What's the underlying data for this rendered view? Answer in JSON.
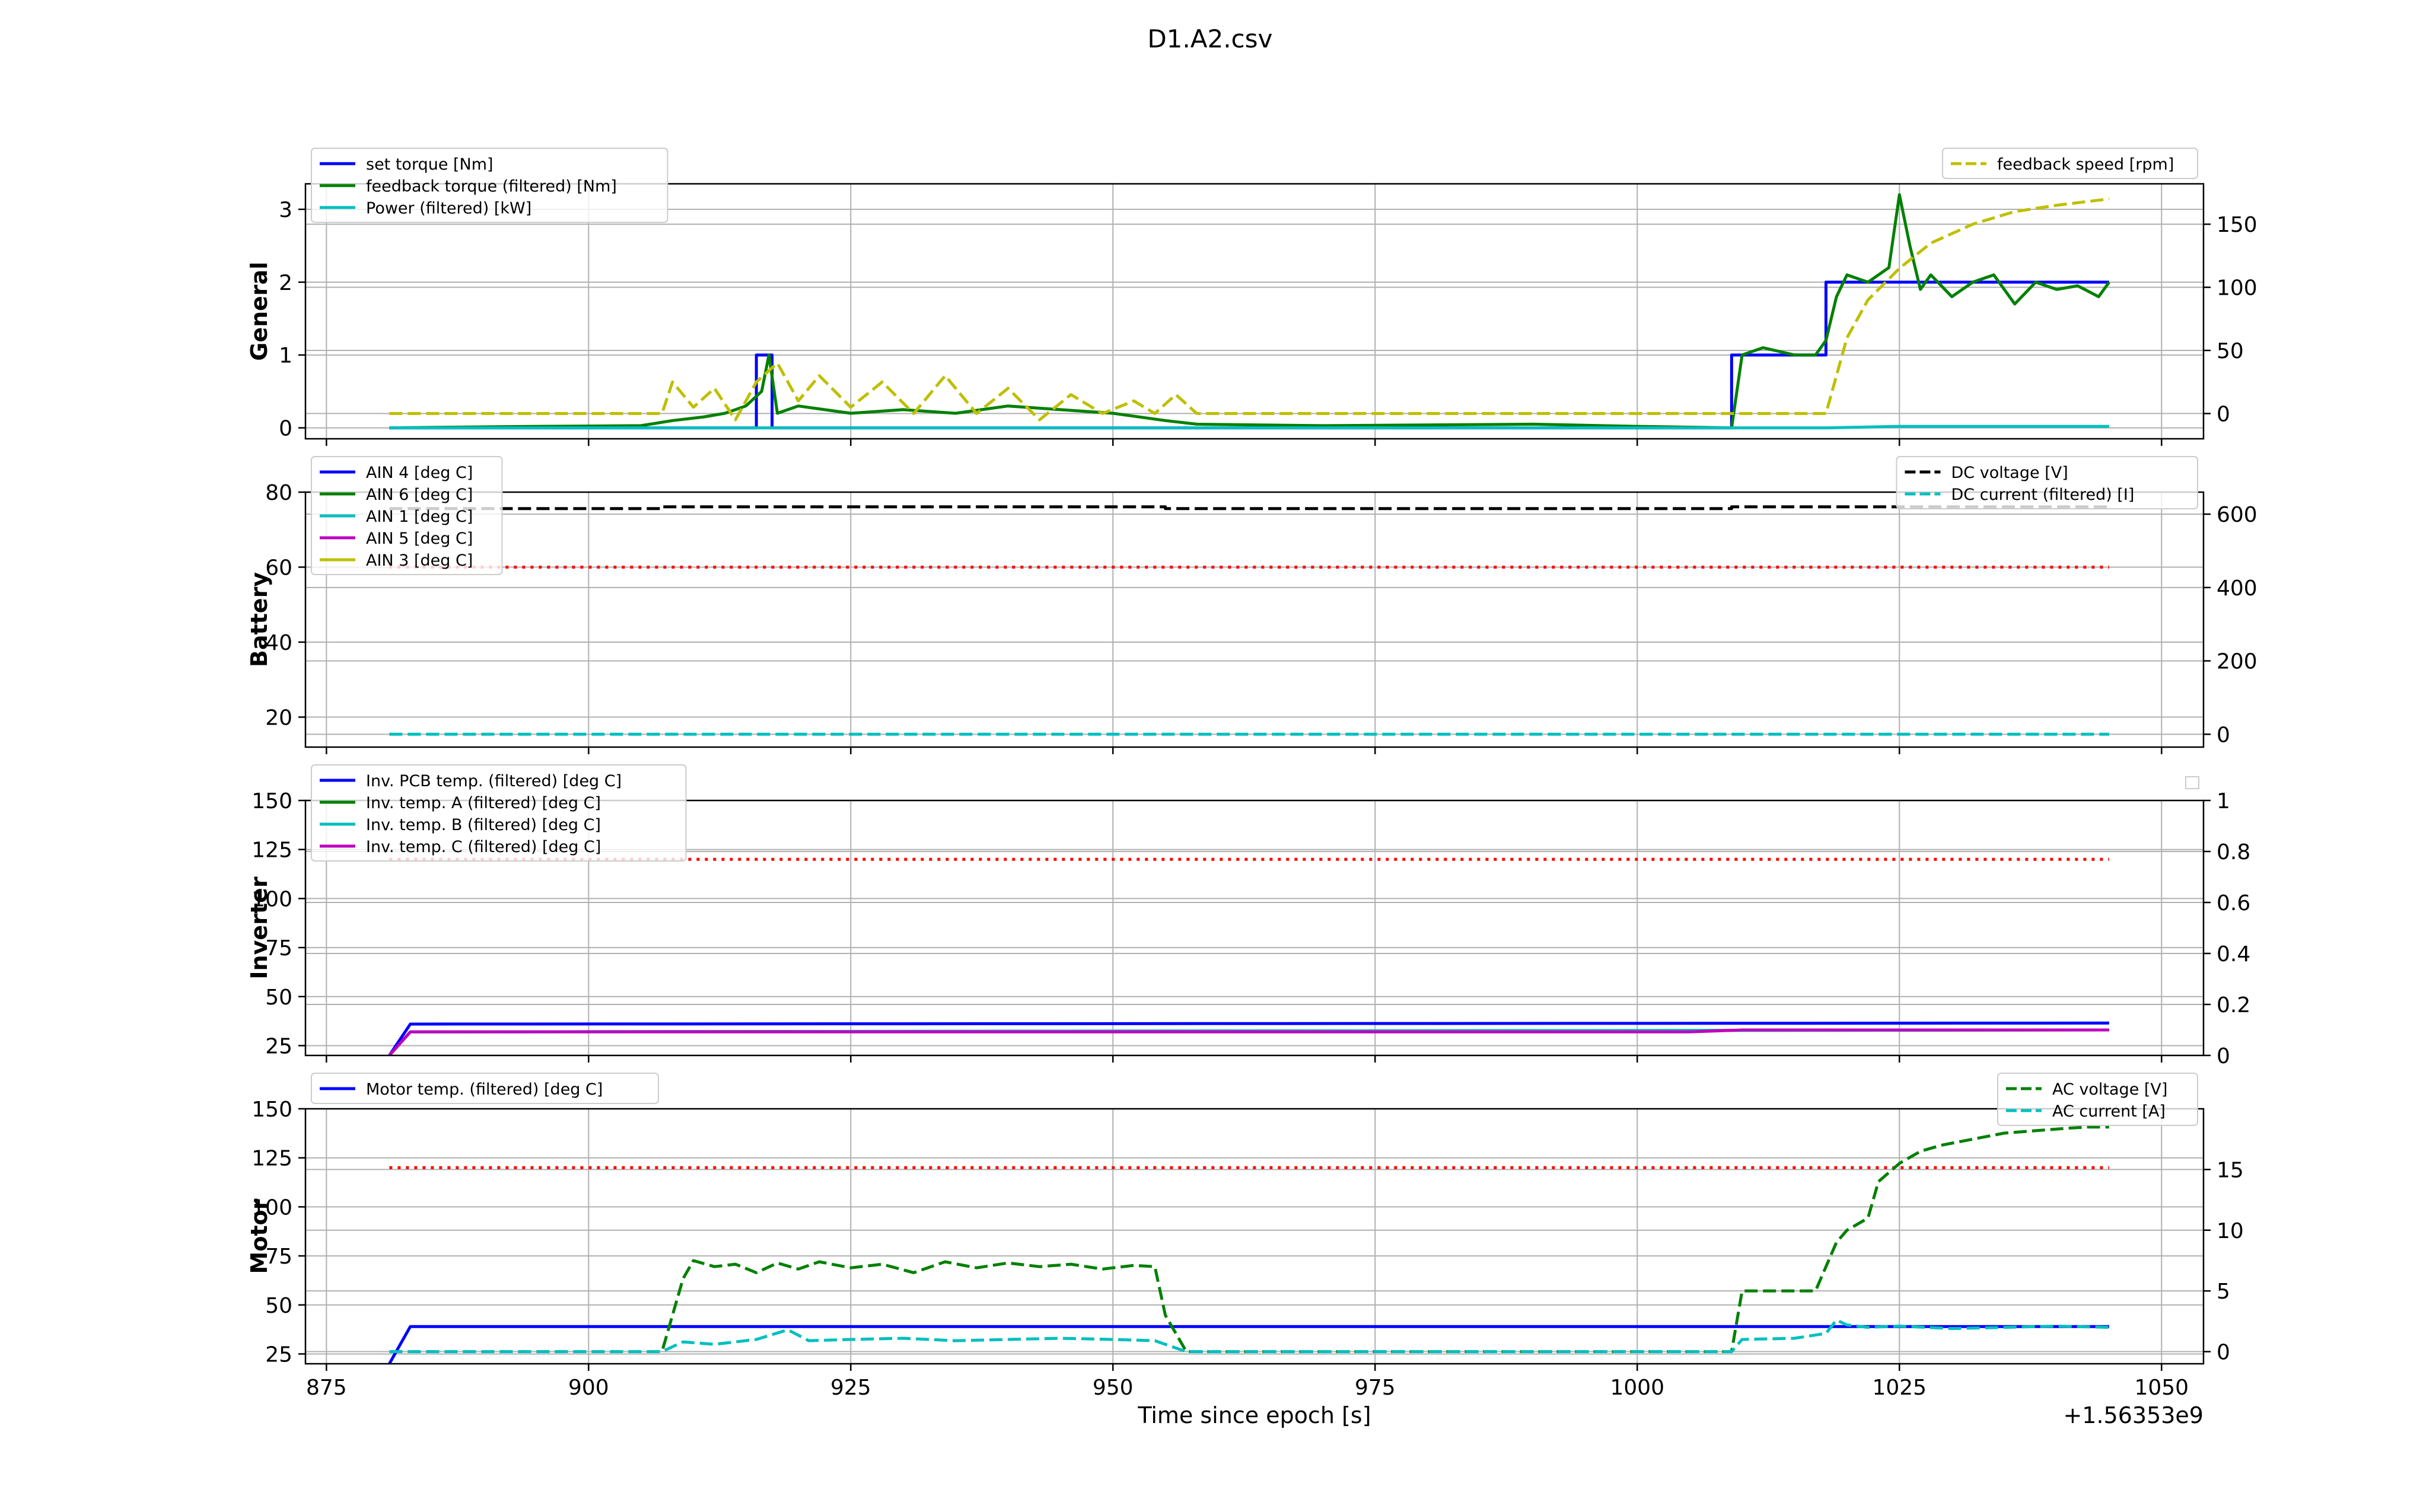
{
  "figure_title": "D1.A2.csv",
  "chart_data": [
    {
      "type": "line",
      "ylabel": "General",
      "xlim": [
        873,
        1054
      ],
      "ylim": [
        -0.15,
        3.35
      ],
      "yticks": [
        0,
        1,
        2,
        3
      ],
      "y2lim": [
        -20,
        182
      ],
      "y2ticks": [
        0,
        50,
        100,
        150
      ],
      "grid": true,
      "legend_left": "top-left",
      "legend_right": "top-right",
      "series": [
        {
          "name": "set torque [Nm]",
          "color": "#0000ff",
          "style": "solid",
          "axis": "left",
          "x": [
            881,
            916,
            916,
            917.5,
            917.5,
            1009,
            1009,
            1018,
            1018,
            1045
          ],
          "y": [
            0,
            0,
            1,
            1,
            0,
            0,
            1,
            1,
            2,
            2
          ]
        },
        {
          "name": "feedback torque (filtered) [Nm]",
          "color": "#008000",
          "style": "solid",
          "axis": "left",
          "x": [
            881,
            895,
            905,
            908,
            911,
            913,
            915,
            916.5,
            917.2,
            918,
            920,
            925,
            930,
            935,
            940,
            945,
            950,
            955,
            958,
            970,
            990,
            1000,
            1009,
            1010,
            1012,
            1015,
            1017,
            1018,
            1019,
            1020,
            1022,
            1024,
            1025,
            1026,
            1027,
            1028,
            1030,
            1032,
            1034,
            1036,
            1038,
            1040,
            1042,
            1044,
            1045
          ],
          "y": [
            0,
            0.02,
            0.03,
            0.1,
            0.15,
            0.2,
            0.3,
            0.5,
            1.0,
            0.2,
            0.3,
            0.2,
            0.25,
            0.2,
            0.3,
            0.25,
            0.2,
            0.1,
            0.05,
            0.03,
            0.05,
            0.02,
            0,
            1.0,
            1.1,
            1.0,
            1.0,
            1.2,
            1.8,
            2.1,
            2.0,
            2.2,
            3.2,
            2.5,
            1.9,
            2.1,
            1.8,
            2.0,
            2.1,
            1.7,
            2.0,
            1.9,
            1.95,
            1.8,
            2.0
          ]
        },
        {
          "name": "Power (filtered) [kW]",
          "color": "#00bfbf",
          "style": "solid",
          "axis": "left",
          "x": [
            881,
            1018,
            1025,
            1045
          ],
          "y": [
            0,
            0,
            0.02,
            0.02
          ]
        },
        {
          "name": "feedback speed [rpm]",
          "color": "#bfbf00",
          "style": "dashed",
          "axis": "right",
          "x": [
            881,
            907,
            908,
            910,
            912,
            914,
            916,
            918,
            920,
            922,
            925,
            928,
            931,
            934,
            937,
            940,
            943,
            946,
            949,
            952,
            954,
            956,
            958,
            1018,
            1019,
            1020,
            1022,
            1025,
            1028,
            1032,
            1036,
            1040,
            1045
          ],
          "y": [
            0,
            0,
            25,
            5,
            20,
            -5,
            25,
            40,
            10,
            30,
            5,
            25,
            0,
            30,
            0,
            20,
            -5,
            15,
            0,
            10,
            0,
            15,
            0,
            0,
            30,
            60,
            90,
            115,
            135,
            150,
            160,
            165,
            170
          ]
        }
      ]
    },
    {
      "type": "line",
      "ylabel": "Battery",
      "xlim": [
        873,
        1054
      ],
      "ylim": [
        12,
        80
      ],
      "yticks": [
        20,
        40,
        60,
        80
      ],
      "y2lim": [
        -35,
        660
      ],
      "y2ticks": [
        0,
        200,
        400,
        600
      ],
      "grid": true,
      "legend_left": "top-left",
      "legend_right": "top-right",
      "series": [
        {
          "name": "AIN 4 [deg C]",
          "color": "#0000ff",
          "style": "solid",
          "axis": "left",
          "x": [],
          "y": []
        },
        {
          "name": "AIN 6 [deg C]",
          "color": "#008000",
          "style": "solid",
          "axis": "left",
          "x": [],
          "y": []
        },
        {
          "name": "AIN 1 [deg C]",
          "color": "#00bfbf",
          "style": "solid",
          "axis": "left",
          "x": [],
          "y": []
        },
        {
          "name": "AIN 5 [deg C]",
          "color": "#bf00bf",
          "style": "solid",
          "axis": "left",
          "x": [],
          "y": []
        },
        {
          "name": "AIN 3 [deg C]",
          "color": "#bfbf00",
          "style": "solid",
          "axis": "left",
          "x": [],
          "y": []
        },
        {
          "name": "",
          "color": "#ff0000",
          "style": "dotted",
          "axis": "left",
          "x": [
            881,
            1045
          ],
          "y": [
            60,
            60
          ]
        },
        {
          "name": "DC voltage [V]",
          "color": "#000000",
          "style": "dashed",
          "axis": "right",
          "x": [
            881,
            907,
            907,
            955,
            955,
            1009,
            1009,
            1045
          ],
          "y": [
            615,
            615,
            620,
            620,
            615,
            615,
            620,
            620
          ]
        },
        {
          "name": "DC current (filtered) [I]",
          "color": "#00bfbf",
          "style": "dashed",
          "axis": "right",
          "x": [
            881,
            1045
          ],
          "y": [
            0,
            0
          ]
        }
      ]
    },
    {
      "type": "line",
      "ylabel": "Inverter",
      "xlim": [
        873,
        1054
      ],
      "ylim": [
        20,
        150
      ],
      "yticks": [
        25,
        50,
        75,
        100,
        125,
        150
      ],
      "y2lim": [
        0,
        1.0
      ],
      "y2ticks": [
        0.0,
        0.2,
        0.4,
        0.6,
        0.8,
        1.0
      ],
      "grid": true,
      "legend_left": "top-left",
      "legend_right": "top-right",
      "series": [
        {
          "name": "Inv. PCB temp. (filtered) [deg C]",
          "color": "#0000ff",
          "style": "solid",
          "axis": "left",
          "x": [
            881,
            883,
            1045
          ],
          "y": [
            20,
            36,
            36.5
          ]
        },
        {
          "name": "Inv. temp. A (filtered) [deg C]",
          "color": "#008000",
          "style": "solid",
          "axis": "left",
          "x": [
            881,
            883,
            1045
          ],
          "y": [
            20,
            32,
            33
          ]
        },
        {
          "name": "Inv. temp. B (filtered) [deg C]",
          "color": "#00bfbf",
          "style": "solid",
          "axis": "left",
          "x": [
            881,
            883,
            1045
          ],
          "y": [
            20,
            32,
            33
          ]
        },
        {
          "name": "Inv. temp. C (filtered) [deg C]",
          "color": "#bf00bf",
          "style": "solid",
          "axis": "left",
          "x": [
            881,
            883,
            1005,
            1010,
            1045
          ],
          "y": [
            20,
            32,
            32,
            33,
            33
          ]
        },
        {
          "name": "",
          "color": "#ff0000",
          "style": "dotted",
          "axis": "left",
          "x": [
            881,
            1045
          ],
          "y": [
            120,
            120
          ]
        }
      ]
    },
    {
      "type": "line",
      "ylabel": "Motor",
      "xlabel": "Time since epoch [s]",
      "x_offset_label": "+1.56353e9",
      "xlim": [
        873,
        1054
      ],
      "xticks": [
        875,
        900,
        925,
        950,
        975,
        1000,
        1025,
        1050
      ],
      "ylim": [
        20,
        150
      ],
      "yticks": [
        25,
        50,
        75,
        100,
        125,
        150
      ],
      "y2lim": [
        -1,
        20
      ],
      "y2ticks": [
        0,
        5,
        10,
        15
      ],
      "grid": true,
      "legend_left": "top-left",
      "legend_right": "top-right",
      "series": [
        {
          "name": "Motor temp. (filtered) [deg C]",
          "color": "#0000ff",
          "style": "solid",
          "axis": "left",
          "x": [
            881,
            883,
            1045
          ],
          "y": [
            20,
            39,
            39
          ]
        },
        {
          "name": "",
          "color": "#ff0000",
          "style": "dotted",
          "axis": "left",
          "x": [
            881,
            1045
          ],
          "y": [
            120,
            120
          ]
        },
        {
          "name": "AC voltage [V]",
          "color": "#008000",
          "style": "dashed",
          "axis": "right",
          "x": [
            881,
            907,
            909,
            910,
            912,
            914,
            916,
            918,
            920,
            922,
            925,
            928,
            931,
            934,
            937,
            940,
            943,
            946,
            949,
            952,
            954,
            955,
            957,
            1009,
            1010,
            1017,
            1018,
            1019,
            1020,
            1022,
            1023,
            1025,
            1027,
            1029,
            1032,
            1035,
            1038,
            1041,
            1043,
            1045
          ],
          "y": [
            0,
            0,
            6,
            7.5,
            7,
            7.2,
            6.5,
            7.3,
            6.8,
            7.4,
            6.9,
            7.2,
            6.5,
            7.4,
            6.9,
            7.3,
            7.0,
            7.2,
            6.8,
            7.1,
            7.0,
            3,
            0,
            0,
            5,
            5,
            7,
            9,
            10,
            11,
            14,
            15.5,
            16.5,
            17,
            17.5,
            18,
            18.2,
            18.4,
            18.5,
            18.5
          ]
        },
        {
          "name": "AC current [A]",
          "color": "#00bfbf",
          "style": "dashed",
          "axis": "right",
          "x": [
            881,
            907,
            909,
            912,
            916,
            919,
            921,
            925,
            930,
            935,
            940,
            945,
            950,
            954,
            957,
            1009,
            1010,
            1015,
            1018,
            1019,
            1020,
            1022,
            1025,
            1030,
            1035,
            1040,
            1045
          ],
          "y": [
            0,
            0,
            0.8,
            0.6,
            1.0,
            1.8,
            0.9,
            1.0,
            1.1,
            0.9,
            1.0,
            1.1,
            1.0,
            0.9,
            0,
            0,
            1.0,
            1.1,
            1.5,
            2.6,
            2.2,
            2.0,
            2.1,
            1.9,
            2.0,
            2.1,
            2.0
          ]
        }
      ]
    }
  ]
}
